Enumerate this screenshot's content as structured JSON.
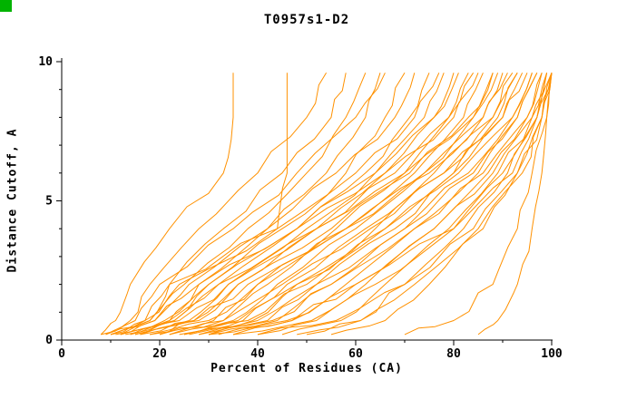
{
  "window": {
    "corner_marker_color": "#00b300"
  },
  "chart_data": {
    "type": "line",
    "title": "T0957s1-D2",
    "xlabel": "Percent of Residues (CA)",
    "ylabel": "Distance Cutoff, A",
    "xlim": [
      0,
      100
    ],
    "ylim": [
      0,
      10
    ],
    "x_ticks_major": [
      0,
      20,
      40,
      60,
      80,
      100
    ],
    "x_tick_minor_step": 10,
    "y_ticks_major": [
      0,
      5,
      10
    ],
    "y_tick_minor_step": 1,
    "grid": false,
    "legend": "none",
    "line_color": "#ff9100",
    "axis_color": "#000000",
    "y_levels": [
      0.2,
      0.7,
      2,
      4,
      6,
      8,
      9.6
    ],
    "series_x_at_y_levels": [
      [
        8,
        11,
        14,
        22,
        33,
        35,
        35
      ],
      [
        10,
        17,
        22,
        44,
        46,
        46,
        46
      ],
      [
        9,
        14,
        18,
        28,
        40,
        50,
        54
      ],
      [
        12,
        18,
        22,
        33,
        45,
        55,
        58
      ],
      [
        10,
        18,
        25,
        38,
        50,
        58,
        62
      ],
      [
        14,
        22,
        28,
        42,
        54,
        62,
        65
      ],
      [
        8,
        15,
        20,
        35,
        48,
        60,
        66
      ],
      [
        15,
        23,
        30,
        45,
        58,
        66,
        70
      ],
      [
        11,
        19,
        26,
        42,
        56,
        68,
        72
      ],
      [
        13,
        23,
        32,
        48,
        62,
        71,
        75
      ],
      [
        16,
        26,
        34,
        50,
        64,
        74,
        78
      ],
      [
        9,
        17,
        24,
        44,
        60,
        72,
        77
      ],
      [
        18,
        28,
        36,
        52,
        66,
        76,
        80
      ],
      [
        12,
        21,
        30,
        48,
        64,
        76,
        81
      ],
      [
        20,
        31,
        40,
        56,
        70,
        79,
        83
      ],
      [
        14,
        24,
        34,
        52,
        68,
        79,
        84
      ],
      [
        22,
        33,
        42,
        58,
        72,
        82,
        86
      ],
      [
        10,
        19,
        28,
        48,
        66,
        80,
        85
      ],
      [
        24,
        35,
        44,
        60,
        74,
        84,
        88
      ],
      [
        16,
        27,
        36,
        55,
        71,
        83,
        88
      ],
      [
        26,
        37,
        46,
        62,
        76,
        86,
        90
      ],
      [
        12,
        22,
        32,
        52,
        70,
        84,
        89
      ],
      [
        28,
        39,
        48,
        64,
        78,
        88,
        92
      ],
      [
        18,
        30,
        40,
        58,
        74,
        86,
        91
      ],
      [
        30,
        42,
        52,
        68,
        80,
        89,
        93
      ],
      [
        15,
        27,
        38,
        58,
        75,
        88,
        93
      ],
      [
        25,
        38,
        50,
        66,
        80,
        90,
        94
      ],
      [
        20,
        33,
        45,
        63,
        78,
        90,
        95
      ],
      [
        30,
        44,
        55,
        70,
        83,
        92,
        96
      ],
      [
        22,
        36,
        48,
        66,
        81,
        92,
        96
      ],
      [
        35,
        47,
        58,
        72,
        85,
        93,
        97
      ],
      [
        25,
        40,
        52,
        70,
        84,
        93,
        97
      ],
      [
        40,
        52,
        62,
        76,
        87,
        95,
        98
      ],
      [
        28,
        43,
        55,
        72,
        86,
        95,
        98
      ],
      [
        45,
        57,
        66,
        79,
        89,
        96,
        99
      ],
      [
        32,
        47,
        60,
        76,
        88,
        96,
        99
      ],
      [
        50,
        61,
        70,
        82,
        91,
        97,
        100
      ],
      [
        35,
        51,
        64,
        80,
        90,
        97,
        100
      ],
      [
        55,
        66,
        75,
        86,
        93,
        98,
        100
      ],
      [
        40,
        56,
        70,
        84,
        93,
        98,
        100
      ],
      [
        30,
        46,
        60,
        80,
        92,
        97,
        99
      ],
      [
        48,
        61,
        72,
        85,
        94,
        98,
        100
      ],
      [
        70,
        80,
        88,
        93,
        96,
        99,
        100
      ],
      [
        85,
        89,
        93,
        96,
        98,
        99,
        100
      ]
    ]
  }
}
